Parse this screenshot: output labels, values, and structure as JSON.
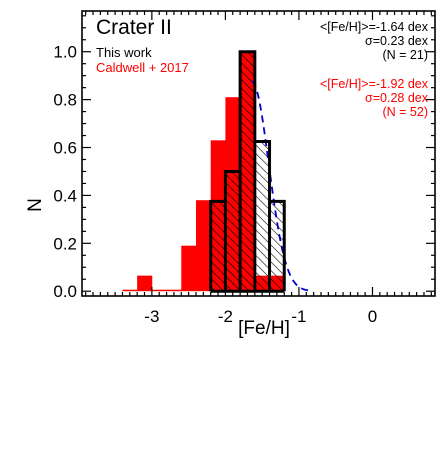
{
  "chart_data": {
    "type": "bar",
    "title": "Crater II",
    "xlabel": "[Fe/H]",
    "ylabel": "N",
    "xlim": [
      -3.95,
      0.85
    ],
    "ylim": [
      -0.02,
      1.17
    ],
    "xticks": [
      -3,
      -2,
      -1,
      0
    ],
    "yticks": [
      0.0,
      0.2,
      0.4,
      0.6,
      0.8,
      1.0
    ],
    "grid": false,
    "legend": [
      "This work",
      "Caldwell + 2017"
    ],
    "bin_width": 0.2,
    "series": [
      {
        "name": "Caldwell + 2017",
        "color": "#ff0000",
        "style": "filled",
        "bins": [
          {
            "x0": -3.4,
            "x1": -3.2,
            "value": 0.0
          },
          {
            "x0": -3.2,
            "x1": -3.0,
            "value": 0.065
          },
          {
            "x0": -3.0,
            "x1": -2.8,
            "value": 0.0
          },
          {
            "x0": -2.8,
            "x1": -2.6,
            "value": 0.0
          },
          {
            "x0": -2.6,
            "x1": -2.4,
            "value": 0.19
          },
          {
            "x0": -2.4,
            "x1": -2.2,
            "value": 0.38
          },
          {
            "x0": -2.2,
            "x1": -2.0,
            "value": 0.63
          },
          {
            "x0": -2.0,
            "x1": -1.8,
            "value": 0.81
          },
          {
            "x0": -1.8,
            "x1": -1.6,
            "value": 1.0
          },
          {
            "x0": -1.6,
            "x1": -1.4,
            "value": 0.065
          },
          {
            "x0": -1.4,
            "x1": -1.2,
            "value": 0.065
          }
        ]
      },
      {
        "name": "This work",
        "color": "#000000",
        "style": "hatched",
        "bins": [
          {
            "x0": -2.2,
            "x1": -2.0,
            "value": 0.375
          },
          {
            "x0": -2.0,
            "x1": -1.8,
            "value": 0.5
          },
          {
            "x0": -1.8,
            "x1": -1.6,
            "value": 1.0
          },
          {
            "x0": -1.6,
            "x1": -1.4,
            "value": 0.625
          },
          {
            "x0": -1.4,
            "x1": -1.2,
            "value": 0.375
          }
        ]
      }
    ],
    "gaussian_fit": {
      "mean": -1.64,
      "sigma": 0.23,
      "peak": 0.875,
      "x_start": -1.64,
      "color": "#0000cc",
      "style": "dashed"
    },
    "stats": {
      "this_work": [
        "<[Fe/H]>=-1.64 dex",
        "σ=0.23 dex",
        "(N = 21)"
      ],
      "caldwell": [
        "<[Fe/H]>=-1.92 dex",
        "σ=0.28 dex",
        "(N = 52)"
      ]
    }
  }
}
